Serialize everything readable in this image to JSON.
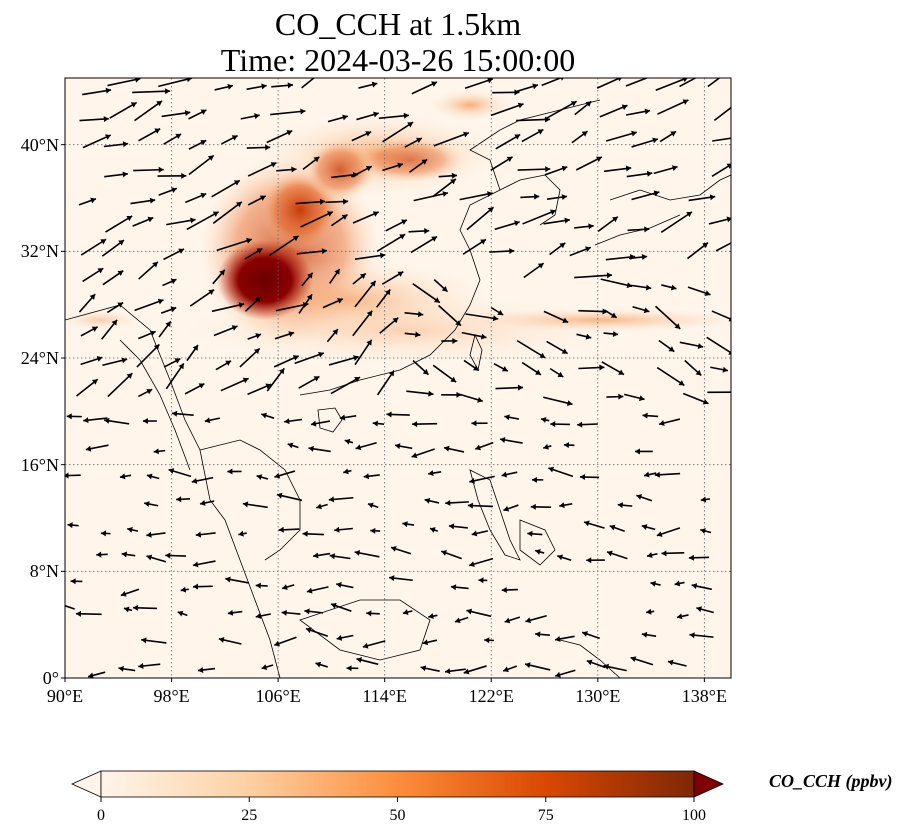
{
  "title": {
    "line1": "CO_CCH at 1.5km",
    "line2": "Time: 2024-03-26 15:00:00"
  },
  "map": {
    "extent": {
      "lon_min": 90,
      "lon_max": 140,
      "lat_min": 0,
      "lat_max": 45
    },
    "y_ticks": [
      {
        "lat": 0,
        "label": "0°"
      },
      {
        "lat": 8,
        "label": "8°N"
      },
      {
        "lat": 16,
        "label": "16°N"
      },
      {
        "lat": 24,
        "label": "24°N"
      },
      {
        "lat": 32,
        "label": "32°N"
      },
      {
        "lat": 40,
        "label": "40°N"
      }
    ],
    "x_ticks": [
      {
        "lon": 90,
        "label": "90°E"
      },
      {
        "lon": 98,
        "label": "98°E"
      },
      {
        "lon": 106,
        "label": "106°E"
      },
      {
        "lon": 114,
        "label": "114°E"
      },
      {
        "lon": 122,
        "label": "122°E"
      },
      {
        "lon": 130,
        "label": "130°E"
      },
      {
        "lon": 138,
        "label": "138°E"
      }
    ],
    "gridlines": true,
    "colormap": [
      "#fff5eb",
      "#fdd0a2",
      "#fd8d3c",
      "#d94801",
      "#7f2704"
    ]
  },
  "colorbar": {
    "label": "CO_CCH (ppbv)",
    "min": 0,
    "max": 100,
    "ticks": [
      {
        "value": 0,
        "label": "0"
      },
      {
        "value": 25,
        "label": "25"
      },
      {
        "value": 50,
        "label": "50"
      },
      {
        "value": 75,
        "label": "75"
      },
      {
        "value": 100,
        "label": "100"
      }
    ],
    "extend": "both"
  }
}
